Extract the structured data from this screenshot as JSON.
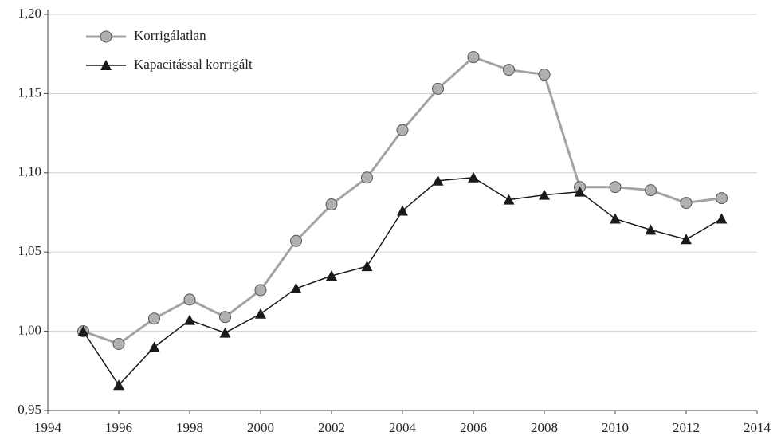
{
  "chart_data": {
    "type": "line",
    "x": [
      1995,
      1996,
      1997,
      1998,
      1999,
      2000,
      2001,
      2002,
      2003,
      2004,
      2005,
      2006,
      2007,
      2008,
      2009,
      2010,
      2011,
      2012,
      2013
    ],
    "series": [
      {
        "name": "Korrigálatlan",
        "color": "#a3a3a3",
        "marker": "circle",
        "values": [
          1.0,
          0.992,
          1.008,
          1.02,
          1.009,
          1.026,
          1.057,
          1.08,
          1.097,
          1.127,
          1.153,
          1.173,
          1.165,
          1.162,
          1.091,
          1.091,
          1.089,
          1.081,
          1.084
        ]
      },
      {
        "name": "Kapacitással korrigált",
        "color": "#1a1a1a",
        "marker": "triangle",
        "values": [
          1.0,
          0.966,
          0.99,
          1.007,
          0.999,
          1.011,
          1.027,
          1.035,
          1.041,
          1.076,
          1.095,
          1.097,
          1.083,
          1.086,
          1.088,
          1.071,
          1.064,
          1.058,
          1.071
        ]
      }
    ],
    "xlim": [
      1994,
      2014
    ],
    "xticks": [
      1994,
      1996,
      1998,
      2000,
      2002,
      2004,
      2006,
      2008,
      2010,
      2012,
      2014
    ],
    "ylim": [
      0.95,
      1.2
    ],
    "yticks": [
      {
        "value": 0.95,
        "label": "0,95"
      },
      {
        "value": 1.0,
        "label": "1,00"
      },
      {
        "value": 1.05,
        "label": "1,05"
      },
      {
        "value": 1.1,
        "label": "1,10"
      },
      {
        "value": 1.15,
        "label": "1,15"
      },
      {
        "value": 1.2,
        "label": "1,20"
      }
    ],
    "grid": true,
    "legend": "top-left"
  }
}
